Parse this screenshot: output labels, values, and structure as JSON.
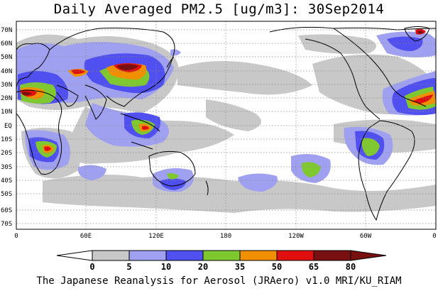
{
  "title": "Daily Averaged PM2.5 [ug/m3]: 30Sep2014",
  "footer": "The Japanese Reanalysis for Aerosol (JRAero) v1.0 MRI/KU_RIAM",
  "lat_labels": [
    "70N",
    "60N",
    "50N",
    "40N",
    "30N",
    "20N",
    "10N",
    "EQ",
    "10S",
    "20S",
    "30S",
    "40S",
    "50S",
    "60S",
    "70S"
  ],
  "lon_labels": [
    "0",
    "60E",
    "120E",
    "180",
    "120W",
    "60W",
    "0"
  ],
  "colorbar": {
    "thresholds": [
      "0",
      "5",
      "10",
      "20",
      "35",
      "50",
      "65",
      "80"
    ],
    "colors": [
      "#ffffff",
      "#c8c8c8",
      "#a0a0f0",
      "#5050f0",
      "#80c830",
      "#f09000",
      "#e01010",
      "#781010"
    ]
  }
}
